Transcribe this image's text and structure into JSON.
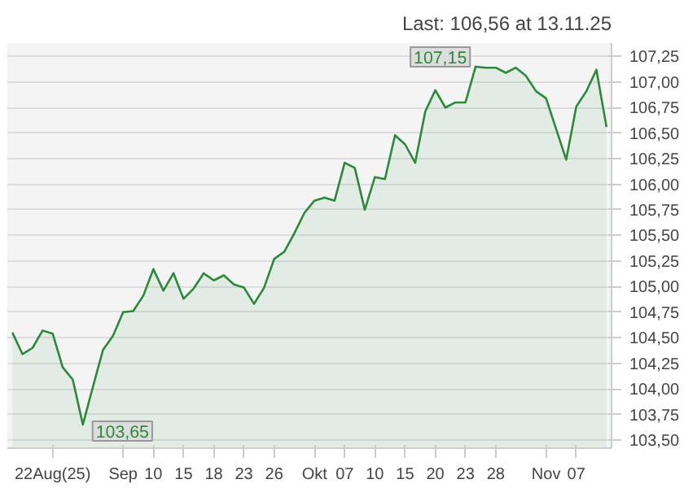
{
  "chart_data": {
    "type": "area",
    "title": "Last: 106,56 at 13.11.25",
    "categories": [
      null,
      null,
      null,
      null,
      "22Aug(25)",
      null,
      null,
      null,
      null,
      null,
      null,
      "Sep",
      null,
      null,
      "10",
      null,
      null,
      "15",
      null,
      null,
      "18",
      null,
      null,
      "23",
      null,
      null,
      "26",
      null,
      null,
      null,
      "Okt",
      null,
      null,
      "07",
      null,
      null,
      "10",
      null,
      null,
      "15",
      null,
      null,
      "20",
      null,
      null,
      "23",
      null,
      null,
      "28",
      null,
      null,
      null,
      null,
      "Nov",
      null,
      null,
      "07",
      null,
      null,
      null
    ],
    "series": [
      {
        "color": "#2a8a3a",
        "values": [
          104.55,
          104.34,
          104.4,
          104.57,
          104.54,
          104.21,
          104.09,
          103.65,
          104.02,
          104.38,
          104.52,
          104.75,
          104.76,
          104.91,
          105.17,
          104.96,
          105.13,
          104.88,
          104.98,
          105.13,
          105.06,
          105.11,
          105.02,
          104.99,
          104.83,
          104.99,
          105.27,
          105.34,
          105.52,
          105.72,
          105.84,
          105.87,
          105.84,
          106.21,
          106.16,
          105.75,
          106.07,
          106.05,
          106.48,
          106.39,
          106.21,
          106.71,
          106.92,
          106.75,
          106.8,
          106.8,
          107.15,
          107.14,
          107.14,
          107.09,
          107.14,
          107.06,
          106.91,
          106.84,
          106.54,
          106.24,
          106.76,
          106.91,
          107.12,
          106.56
        ]
      }
    ],
    "ylim": [
      103.42,
      107.38
    ],
    "yticks": [
      {
        "value": 103.5,
        "label": "103,50"
      },
      {
        "value": 103.75,
        "label": "103,75"
      },
      {
        "value": 104,
        "label": "104,00"
      },
      {
        "value": 104.25,
        "label": "104,25"
      },
      {
        "value": 104.5,
        "label": "104,50"
      },
      {
        "value": 104.75,
        "label": "104,75"
      },
      {
        "value": 105,
        "label": "105,00"
      },
      {
        "value": 105.25,
        "label": "105,25"
      },
      {
        "value": 105.5,
        "label": "105,50"
      },
      {
        "value": 105.75,
        "label": "105,75"
      },
      {
        "value": 106,
        "label": "106,00"
      },
      {
        "value": 106.25,
        "label": "106,25"
      },
      {
        "value": 106.5,
        "label": "106,50"
      },
      {
        "value": 106.75,
        "label": "106,75"
      },
      {
        "value": 107,
        "label": "107,00"
      },
      {
        "value": 107.25,
        "label": "107,25"
      }
    ],
    "grid": "y",
    "annotations": [
      "107,15",
      "103,65"
    ]
  }
}
